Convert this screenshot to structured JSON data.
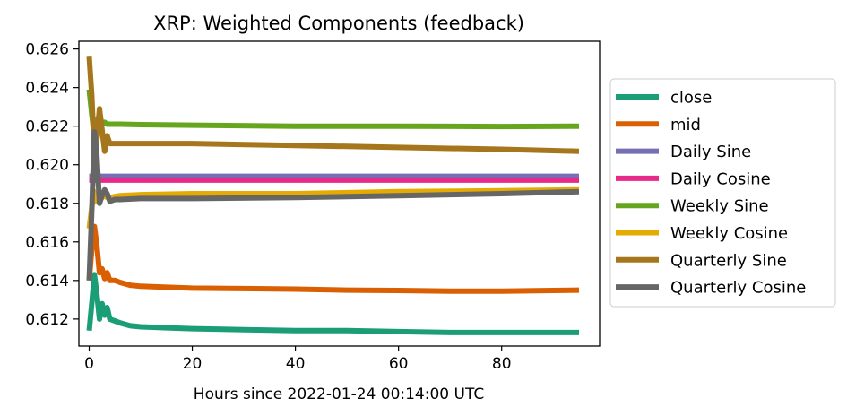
{
  "chart_data": {
    "type": "line",
    "title": "XRP: Weighted Components (feedback)",
    "xlabel": "Hours since 2022-01-24 00:14:00 UTC",
    "ylabel": "",
    "xlim": [
      -2,
      99
    ],
    "ylim": [
      0.6106,
      0.6264
    ],
    "x_ticks": [
      0,
      20,
      40,
      60,
      80
    ],
    "y_ticks": [
      0.612,
      0.614,
      0.616,
      0.618,
      0.62,
      0.622,
      0.624,
      0.626
    ],
    "y_tick_labels": [
      "0.612",
      "0.614",
      "0.616",
      "0.618",
      "0.620",
      "0.622",
      "0.624",
      "0.626"
    ],
    "grid": false,
    "legend_position": "right-outside",
    "series": [
      {
        "name": "close",
        "color": "#1b9e77",
        "x": [
          0,
          0.5,
          1,
          1.5,
          2,
          2.5,
          3,
          3.5,
          4,
          5,
          6,
          8,
          10,
          15,
          20,
          30,
          40,
          50,
          60,
          70,
          80,
          95
        ],
        "y": [
          0.6114,
          0.6128,
          0.6143,
          0.6133,
          0.612,
          0.6128,
          0.6122,
          0.6126,
          0.612,
          0.6119,
          0.6118,
          0.61165,
          0.6116,
          0.61155,
          0.6115,
          0.61145,
          0.6114,
          0.6114,
          0.61135,
          0.6113,
          0.6113,
          0.6113
        ]
      },
      {
        "name": "mid",
        "color": "#d95f02",
        "x": [
          0,
          0.5,
          1,
          1.5,
          2,
          2.5,
          3,
          3.5,
          4,
          5,
          6,
          8,
          10,
          15,
          20,
          30,
          40,
          50,
          60,
          70,
          80,
          95
        ],
        "y": [
          0.614,
          0.6156,
          0.6168,
          0.6158,
          0.6144,
          0.6146,
          0.6141,
          0.6144,
          0.614,
          0.614,
          0.6139,
          0.61375,
          0.6137,
          0.61365,
          0.6136,
          0.61358,
          0.61355,
          0.6135,
          0.61348,
          0.61345,
          0.61345,
          0.6135
        ]
      },
      {
        "name": "Daily Sine",
        "color": "#7570b3",
        "x": [
          0,
          95
        ],
        "y": [
          0.6194,
          0.6194
        ]
      },
      {
        "name": "Daily Cosine",
        "color": "#e7298a",
        "x": [
          0,
          95
        ],
        "y": [
          0.6192,
          0.6192
        ]
      },
      {
        "name": "Weekly Sine",
        "color": "#66a61e",
        "x": [
          0,
          0.5,
          1,
          1.5,
          2,
          2.5,
          3,
          3.5,
          4,
          5,
          6,
          10,
          20,
          40,
          60,
          80,
          95
        ],
        "y": [
          0.6239,
          0.6226,
          0.6215,
          0.6222,
          0.6226,
          0.6221,
          0.6222,
          0.6221,
          0.6221,
          0.6221,
          0.6221,
          0.62208,
          0.62205,
          0.622,
          0.622,
          0.62198,
          0.622
        ]
      },
      {
        "name": "Weekly Cosine",
        "color": "#e6ab02",
        "x": [
          0,
          0.5,
          1,
          1.5,
          2,
          2.5,
          3,
          3.5,
          4,
          5,
          6,
          10,
          20,
          40,
          60,
          80,
          95
        ],
        "y": [
          0.6167,
          0.6178,
          0.6186,
          0.6181,
          0.6183,
          0.6183,
          0.6184,
          0.6183,
          0.6183,
          0.61835,
          0.6184,
          0.61845,
          0.6185,
          0.6185,
          0.6186,
          0.61865,
          0.6187
        ]
      },
      {
        "name": "Quarterly Sine",
        "color": "#a6761d",
        "x": [
          0,
          0.5,
          1,
          1.5,
          2,
          2.5,
          3,
          3.5,
          4,
          5,
          6,
          10,
          20,
          40,
          60,
          80,
          95
        ],
        "y": [
          0.6256,
          0.6236,
          0.6205,
          0.6213,
          0.6229,
          0.6218,
          0.6207,
          0.6215,
          0.6211,
          0.6211,
          0.6211,
          0.6211,
          0.6211,
          0.621,
          0.6209,
          0.6208,
          0.6207
        ]
      },
      {
        "name": "Quarterly Cosine",
        "color": "#666666",
        "x": [
          0,
          0.5,
          1,
          1.5,
          2,
          2.5,
          3,
          3.5,
          4,
          5,
          6,
          10,
          20,
          40,
          60,
          80,
          95
        ],
        "y": [
          0.614,
          0.6176,
          0.6217,
          0.6205,
          0.618,
          0.6184,
          0.6187,
          0.6185,
          0.6181,
          0.6182,
          0.6182,
          0.61825,
          0.61825,
          0.6183,
          0.6184,
          0.6185,
          0.6186
        ]
      }
    ]
  }
}
